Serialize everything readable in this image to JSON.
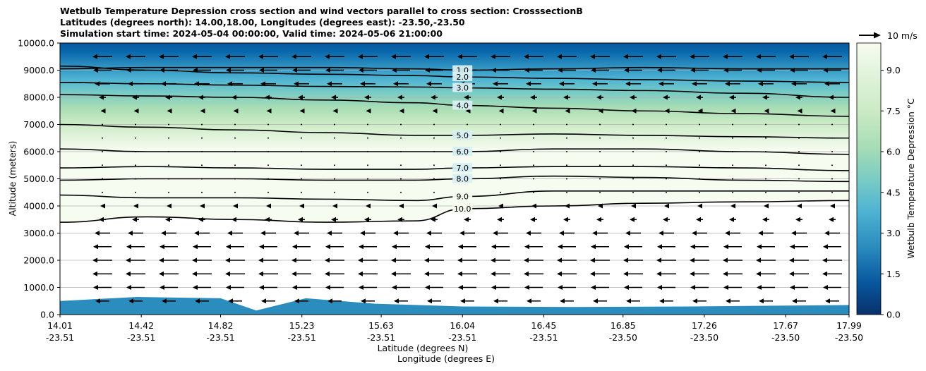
{
  "chart_data": {
    "type": "contour-cross-section",
    "title_lines": [
      "Wetbulb Temperature Depression cross section and wind vectors parallel to cross section: CrosssectionB",
      "Latitudes (degrees north): 14.00,18.00, Longitudes (degrees east): -23.50,-23.50",
      "Simulation start time: 2024-05-04 00:00:00, Valid time: 2024-05-06 21:00:00"
    ],
    "ylabel": "Altitude (meters)",
    "xlabel_lat": "Latitude (degrees N)",
    "xlabel_lon": "Longitude (degrees E)",
    "ylim": [
      0,
      10000
    ],
    "y_ticks": [
      "0.0",
      "1000.0",
      "2000.0",
      "3000.0",
      "4000.0",
      "5000.0",
      "6000.0",
      "7000.0",
      "8000.0",
      "9000.0",
      "10000.0"
    ],
    "y_tick_values": [
      0,
      1000,
      2000,
      3000,
      4000,
      5000,
      6000,
      7000,
      8000,
      9000,
      10000
    ],
    "xlim": [
      14.01,
      17.99
    ],
    "x_ticks": [
      {
        "lat": "14.01",
        "lon": "-23.51",
        "v": 14.01
      },
      {
        "lat": "14.42",
        "lon": "-23.51",
        "v": 14.42
      },
      {
        "lat": "14.82",
        "lon": "-23.51",
        "v": 14.82
      },
      {
        "lat": "15.23",
        "lon": "-23.51",
        "v": 15.23
      },
      {
        "lat": "15.63",
        "lon": "-23.51",
        "v": 15.63
      },
      {
        "lat": "16.04",
        "lon": "-23.51",
        "v": 16.04
      },
      {
        "lat": "16.45",
        "lon": "-23.51",
        "v": 16.45
      },
      {
        "lat": "16.85",
        "lon": "-23.50",
        "v": 16.85
      },
      {
        "lat": "17.26",
        "lon": "-23.50",
        "v": 17.26
      },
      {
        "lat": "17.67",
        "lon": "-23.50",
        "v": 17.67
      },
      {
        "lat": "17.99",
        "lon": "-23.50",
        "v": 17.99
      }
    ],
    "grid": true,
    "colorbar": {
      "label": "Wetbulb Temperature Depression °C",
      "range": [
        0,
        10
      ],
      "ticks": [
        "0.0",
        "1.5",
        "3.0",
        "4.5",
        "6.0",
        "7.5",
        "9.0"
      ],
      "tick_values": [
        0,
        1.5,
        3,
        4.5,
        6,
        7.5,
        9
      ],
      "colormap": "GnBu_r",
      "colors": [
        "#08306b",
        "#08589e",
        "#2b8cbe",
        "#4eb3d3",
        "#7bccc4",
        "#a8ddb5",
        "#ccebc5",
        "#e0f3db",
        "#f7fcf0"
      ]
    },
    "quiver_key": {
      "label": "10 m/s",
      "value": 10
    },
    "contour_lines": [
      {
        "level": 1.0,
        "label": "1.0",
        "altitude_m": [
          9050,
          9100,
          9100,
          9100,
          9050,
          9000,
          9050,
          9100,
          9050,
          9050
        ]
      },
      {
        "level": 2.0,
        "label": "2.0",
        "altitude_m": [
          9150,
          9000,
          8900,
          8850,
          8800,
          8750,
          8700,
          8650,
          8600,
          8550
        ]
      },
      {
        "level": 3.0,
        "label": "3.0",
        "altitude_m": [
          8550,
          8500,
          8450,
          8400,
          8380,
          8350,
          8300,
          8250,
          8150,
          8000
        ]
      },
      {
        "level": 4.0,
        "label": "4.0",
        "altitude_m": [
          8100,
          8050,
          8000,
          7900,
          7800,
          7700,
          7600,
          7500,
          7400,
          7300
        ]
      },
      {
        "level": 5.0,
        "label": "5.0",
        "altitude_m": [
          7000,
          6900,
          6800,
          6700,
          6600,
          6600,
          6650,
          6600,
          6550,
          6500
        ]
      },
      {
        "level": 6.0,
        "label": "6.0",
        "altitude_m": [
          6100,
          6000,
          6000,
          6000,
          6000,
          6000,
          6100,
          6100,
          6000,
          5900
        ]
      },
      {
        "level": 7.0,
        "label": "7.0",
        "altitude_m": [
          5400,
          5450,
          5400,
          5350,
          5350,
          5400,
          5450,
          5450,
          5400,
          5300
        ]
      },
      {
        "level": 8.0,
        "label": "8.0",
        "altitude_m": [
          4950,
          5000,
          5000,
          4950,
          4950,
          5000,
          5100,
          5050,
          4950,
          4900
        ]
      },
      {
        "level": 9.0,
        "label": "9.0",
        "altitude_m": [
          4400,
          4300,
          4300,
          4250,
          4200,
          4350,
          4550,
          4550,
          4550,
          4550
        ]
      },
      {
        "level": 10.0,
        "label": "10.0",
        "altitude_m": [
          3400,
          3600,
          3500,
          3400,
          3450,
          3900,
          4000,
          4100,
          4150,
          4200
        ]
      }
    ],
    "contour_x": [
      14.01,
      14.45,
      14.9,
      15.35,
      15.8,
      16.05,
      16.5,
      16.95,
      17.45,
      17.99
    ]
  }
}
